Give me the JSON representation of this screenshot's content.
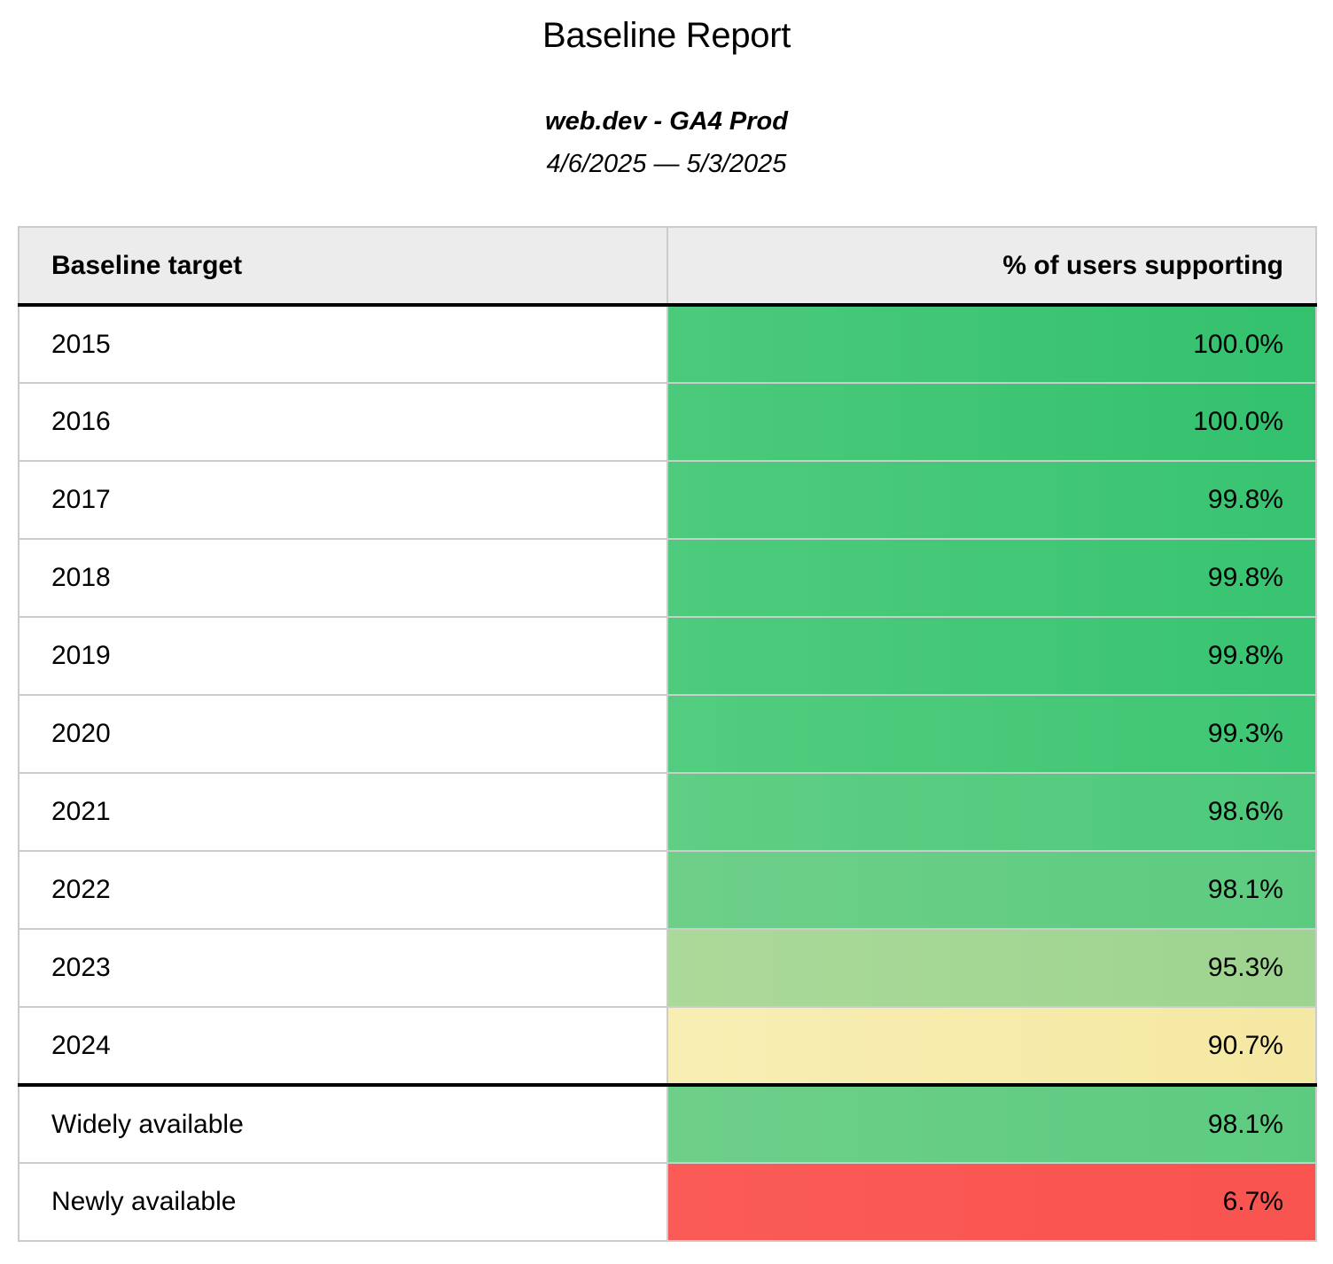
{
  "report": {
    "title": "Baseline Report",
    "subtitle": "web.dev - GA4 Prod",
    "date_range": "4/6/2025 — 5/3/2025"
  },
  "table": {
    "columns": [
      {
        "label": "Baseline target"
      },
      {
        "label": "% of users supporting"
      }
    ],
    "rows": [
      {
        "target": "2015",
        "value": "100.0%",
        "color_from": "#4bca7b",
        "color_to": "#33c16d",
        "group": "year"
      },
      {
        "target": "2016",
        "value": "100.0%",
        "color_from": "#4bca7b",
        "color_to": "#33c16d",
        "group": "year"
      },
      {
        "target": "2017",
        "value": "99.8%",
        "color_from": "#4ecb7d",
        "color_to": "#38c471",
        "group": "year"
      },
      {
        "target": "2018",
        "value": "99.8%",
        "color_from": "#4ecb7d",
        "color_to": "#38c471",
        "group": "year"
      },
      {
        "target": "2019",
        "value": "99.8%",
        "color_from": "#4ecb7d",
        "color_to": "#38c471",
        "group": "year"
      },
      {
        "target": "2020",
        "value": "99.3%",
        "color_from": "#53cc7f",
        "color_to": "#3ec673",
        "group": "year"
      },
      {
        "target": "2021",
        "value": "98.6%",
        "color_from": "#60ce84",
        "color_to": "#4dc97b",
        "group": "year"
      },
      {
        "target": "2022",
        "value": "98.1%",
        "color_from": "#6ecf89",
        "color_to": "#5ccb80",
        "group": "year"
      },
      {
        "target": "2023",
        "value": "95.3%",
        "color_from": "#abd999",
        "color_to": "#9dd48f",
        "group": "year"
      },
      {
        "target": "2024",
        "value": "90.7%",
        "color_from": "#f8eeb4",
        "color_to": "#f5e8a2",
        "group": "year"
      },
      {
        "target": "Widely available",
        "value": "98.1%",
        "color_from": "#6ecf89",
        "color_to": "#5ccb80",
        "group": "summary"
      },
      {
        "target": "Newly available",
        "value": "6.7%",
        "color_from": "#fb5b57",
        "color_to": "#f8534f",
        "group": "summary"
      }
    ]
  },
  "colors": {
    "header_background": "#ececec",
    "row_divider": "#cccccc",
    "strong_divider": "#000000",
    "scale_high_green": "#3dc473",
    "scale_mid_green": "#66cc80",
    "scale_pale_green": "#a5d795",
    "scale_yellow": "#f7ebac",
    "scale_red": "#fa5853"
  },
  "chart_data": {
    "type": "table",
    "title": "Baseline Report",
    "subtitle": "web.dev - GA4 Prod",
    "date_range": "4/6/2025 — 5/3/2025",
    "columns": [
      "Baseline target",
      "% of users supporting"
    ],
    "categories": [
      "2015",
      "2016",
      "2017",
      "2018",
      "2019",
      "2020",
      "2021",
      "2022",
      "2023",
      "2024",
      "Widely available",
      "Newly available"
    ],
    "values": [
      100.0,
      100.0,
      99.8,
      99.8,
      99.8,
      99.3,
      98.6,
      98.1,
      95.3,
      90.7,
      98.1,
      6.7
    ],
    "value_unit": "%",
    "layout_hints": {
      "color_scale": "green (high) to yellow (~90) to red (low)",
      "value_column_alignment": "right",
      "thick_black_rule_after_row": "2024"
    }
  }
}
